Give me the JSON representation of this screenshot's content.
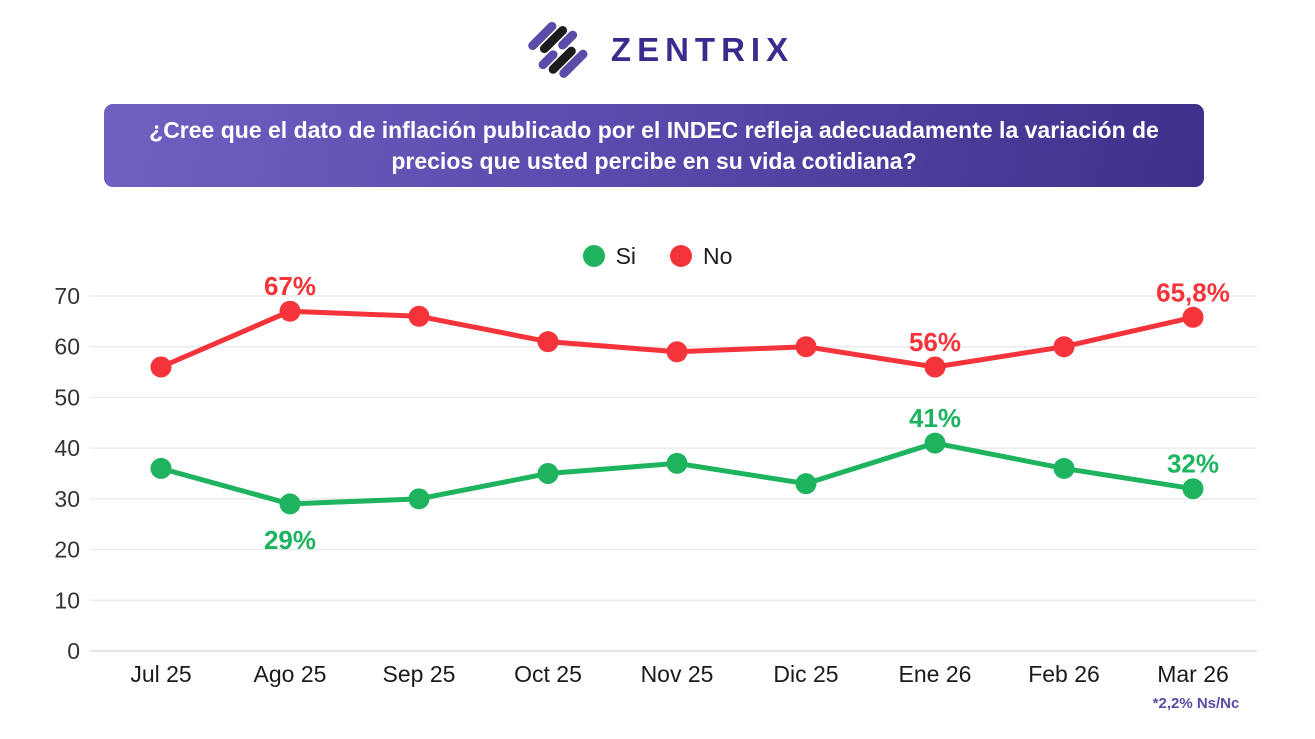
{
  "logo": {
    "brand": "ZENTRIX"
  },
  "question_banner": {
    "text": "¿Cree que el dato de inflación publicado por el INDEC refleja adecuadamente la variación de precios que usted percibe en su vida cotidiana?"
  },
  "legend": [
    {
      "label": "Si",
      "color": "#1eb35e"
    },
    {
      "label": "No",
      "color": "#f5333a"
    }
  ],
  "footnote": "*2,2% Ns/Nc",
  "colors": {
    "si_green": "#1eb35e",
    "no_red": "#f5333a",
    "banner_purple_light": "#6e61c0",
    "banner_purple_dark": "#40308a",
    "brand_indigo": "#3b2b8e",
    "footnote_purple": "#584ca3",
    "gridline": "#e8e8e8"
  },
  "chart_data": {
    "type": "line",
    "title": "",
    "xlabel": "",
    "ylabel": "",
    "categories": [
      "Jul 25",
      "Ago 25",
      "Sep 25",
      "Oct 25",
      "Nov 25",
      "Dic 25",
      "Ene 26",
      "Feb 26",
      "Mar 26"
    ],
    "series": [
      {
        "name": "Si",
        "color": "#1eb35e",
        "values": [
          36,
          29,
          30,
          35,
          37,
          33,
          41,
          36,
          32
        ]
      },
      {
        "name": "No",
        "color": "#f5333a",
        "values": [
          56,
          67,
          66,
          61,
          59,
          60,
          56,
          60,
          65.8
        ]
      }
    ],
    "point_labels": [
      {
        "series": "No",
        "category": "Ago 25",
        "text": "67%",
        "position": "above"
      },
      {
        "series": "No",
        "category": "Ene 26",
        "text": "56%",
        "position": "above"
      },
      {
        "series": "No",
        "category": "Mar 26",
        "text": "65,8%",
        "position": "above"
      },
      {
        "series": "Si",
        "category": "Ago 25",
        "text": "29%",
        "position": "below"
      },
      {
        "series": "Si",
        "category": "Ene 26",
        "text": "41%",
        "position": "above"
      },
      {
        "series": "Si",
        "category": "Mar 26",
        "text": "32%",
        "position": "above"
      }
    ],
    "ylim": [
      0,
      70
    ],
    "ytick_step": 10,
    "yticks": [
      0,
      10,
      20,
      30,
      40,
      50,
      60,
      70
    ],
    "grid": "horizontal",
    "legend_position": "top-center"
  }
}
